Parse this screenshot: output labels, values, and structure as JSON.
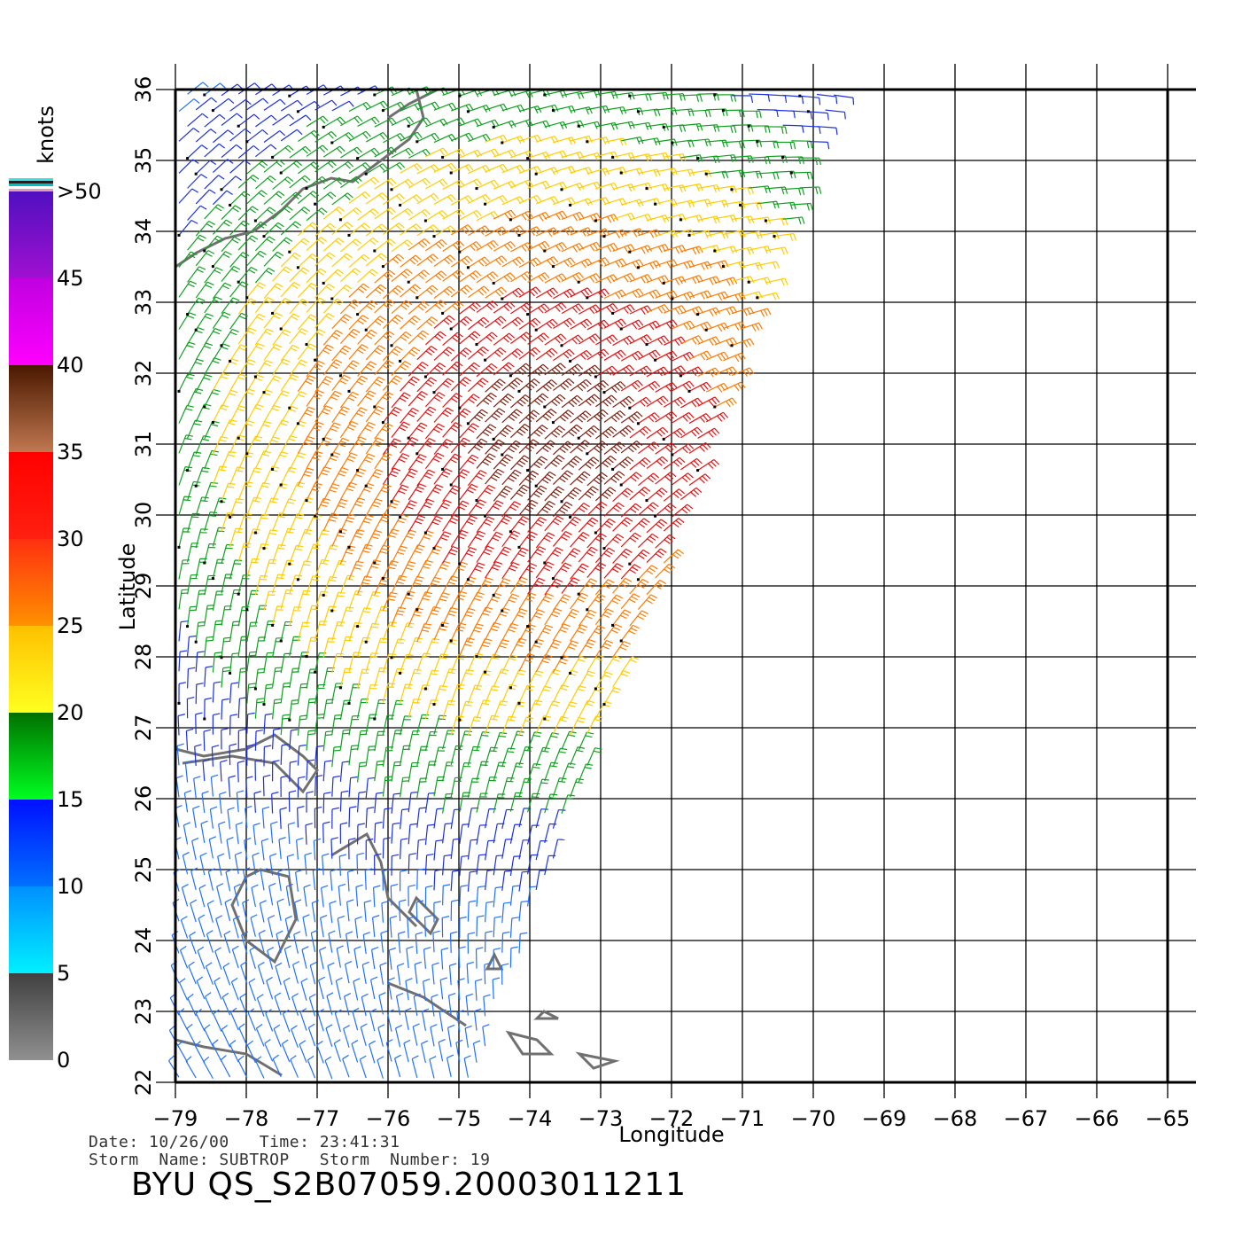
{
  "map": {
    "x_axis": {
      "label": "Longitude",
      "ticks": [
        -79,
        -78,
        -77,
        -76,
        -75,
        -74,
        -73,
        -72,
        -71,
        -70,
        -69,
        -68,
        -67,
        -66,
        -65
      ]
    },
    "y_axis": {
      "label": "Latitude",
      "ticks": [
        22,
        23,
        24,
        25,
        26,
        27,
        28,
        29,
        30,
        31,
        32,
        33,
        34,
        35,
        36
      ]
    },
    "extent": {
      "lon": [
        -79,
        -65
      ],
      "lat": [
        22,
        36
      ]
    },
    "grid": true
  },
  "legend": {
    "unit": "knots",
    "labels": [
      "0",
      "5",
      "10",
      "15",
      "20",
      "25",
      "30",
      "35",
      "40",
      "45",
      ">50"
    ],
    "bands": [
      {
        "from": 0,
        "to": 5,
        "top": "#404040",
        "bottom": "#909090"
      },
      {
        "from": 5,
        "to": 10,
        "top": "#0090ff",
        "bottom": "#00f0ff"
      },
      {
        "from": 10,
        "to": 15,
        "top": "#0010ff",
        "bottom": "#0070ff"
      },
      {
        "from": 15,
        "to": 20,
        "top": "#007000",
        "bottom": "#00ff20"
      },
      {
        "from": 20,
        "to": 25,
        "top": "#ffc000",
        "bottom": "#ffff20"
      },
      {
        "from": 25,
        "to": 30,
        "top": "#ff3010",
        "bottom": "#ff9000"
      },
      {
        "from": 30,
        "to": 35,
        "top": "#ff0000",
        "bottom": "#ff2010"
      },
      {
        "from": 35,
        "to": 40,
        "top": "#4a1800",
        "bottom": "#c07850"
      },
      {
        "from": 40,
        "to": 45,
        "top": "#c000e0",
        "bottom": "#ff00ff"
      },
      {
        "from": 45,
        "to": 50,
        "top": "#5010c0",
        "bottom": "#a010d0"
      }
    ]
  },
  "info": {
    "date_line": "Date: 10/26/00   Time: 23:41:31",
    "storm_line": "Storm  Name: SUBTROP   Storm  Number: 19"
  },
  "title": "BYU  QS_S2B07059.20003011211"
}
